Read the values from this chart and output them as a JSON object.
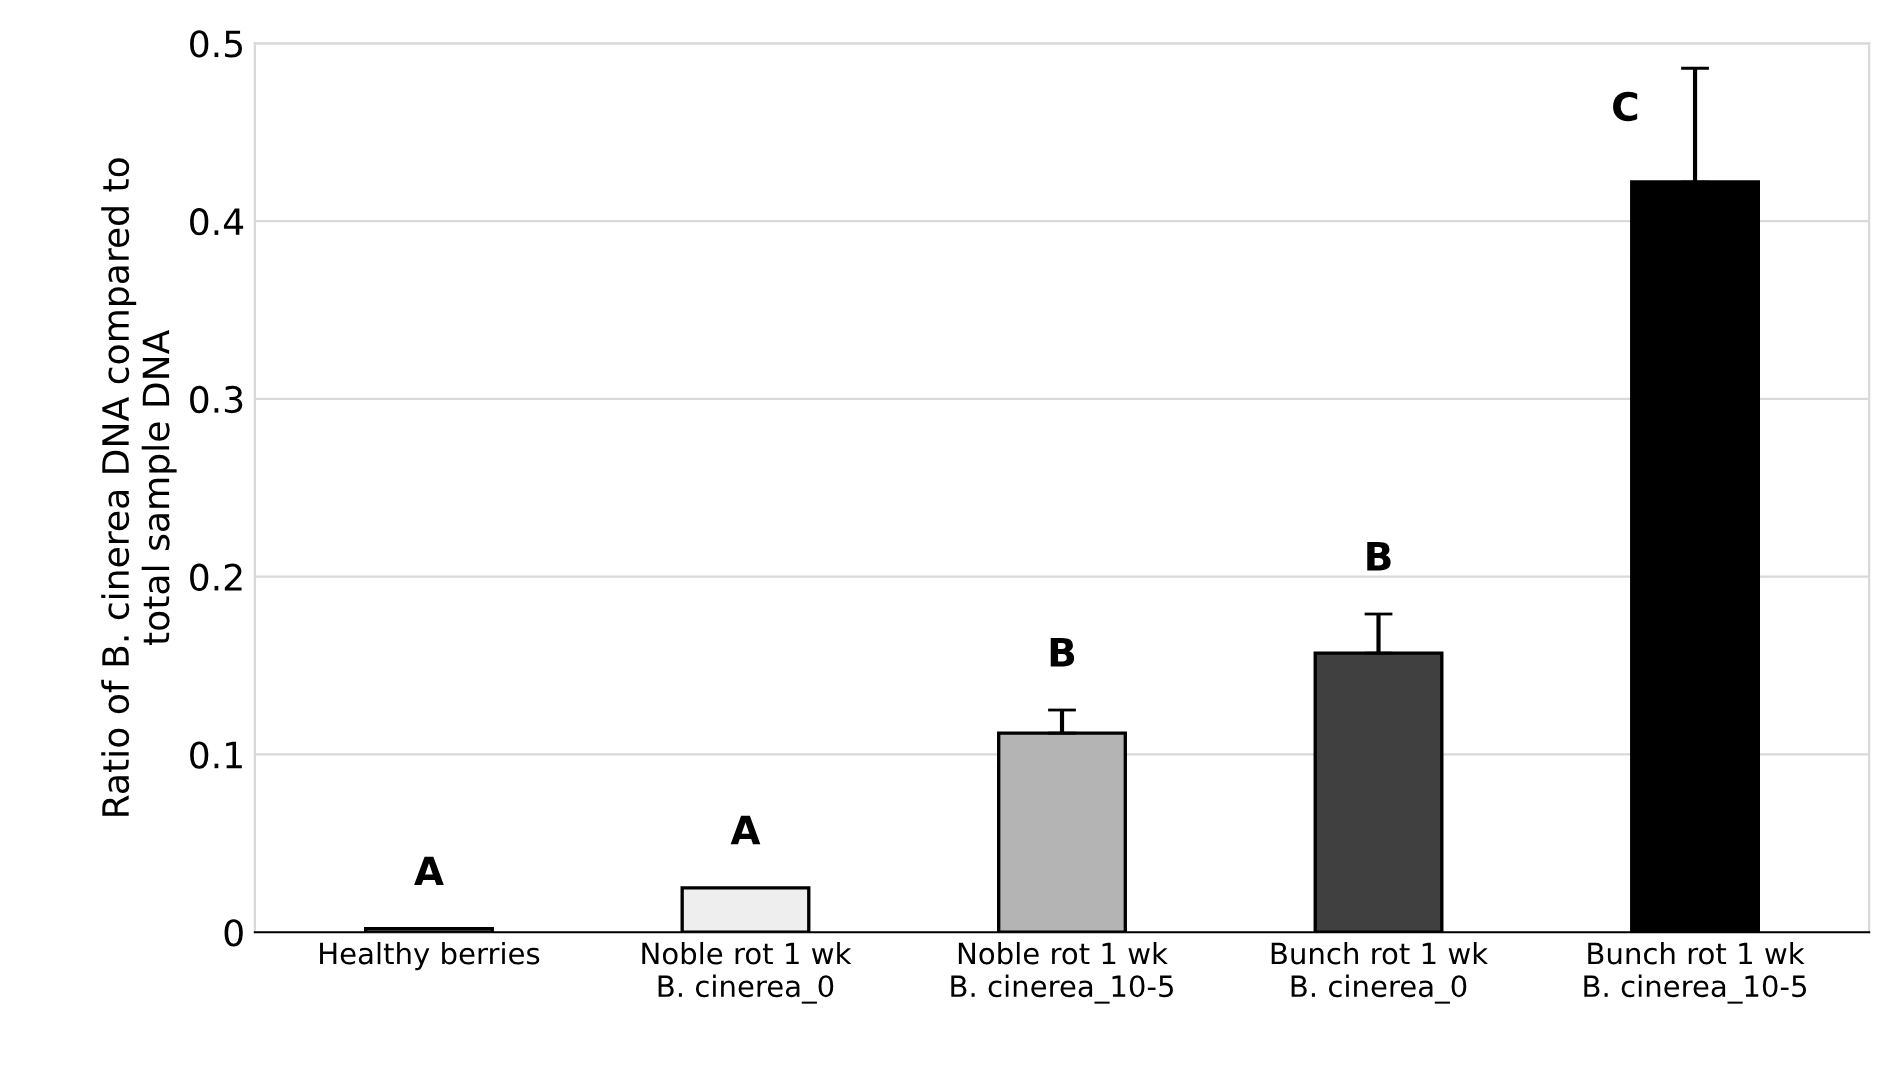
{
  "chart_data": {
    "type": "bar",
    "ylabel": "Ratio of B. cinerea DNA compared to\ntotal sample DNA",
    "categories": [
      "Healthy berries",
      "Noble rot 1 wk\nB. cinerea_0",
      "Noble rot 1 wk\nB. cinerea_10-5",
      "Bunch rot 1 wk\nB. cinerea_0",
      "Bunch rot 1 wk\nB. cinerea_10-5"
    ],
    "values": [
      0.002,
      0.025,
      0.112,
      0.157,
      0.422
    ],
    "errors": [
      null,
      null,
      0.013,
      0.022,
      0.064
    ],
    "colors": [
      "#ffffff",
      "#eeeeee",
      "#b4b4b4",
      "#404040",
      "#000000"
    ],
    "ylim": [
      0,
      0.5
    ],
    "yticks": [
      0,
      0.1,
      0.2,
      0.3,
      0.4,
      0.5
    ],
    "grid": "y",
    "annotations": [
      "A",
      "A",
      "B",
      "B",
      "C"
    ]
  }
}
